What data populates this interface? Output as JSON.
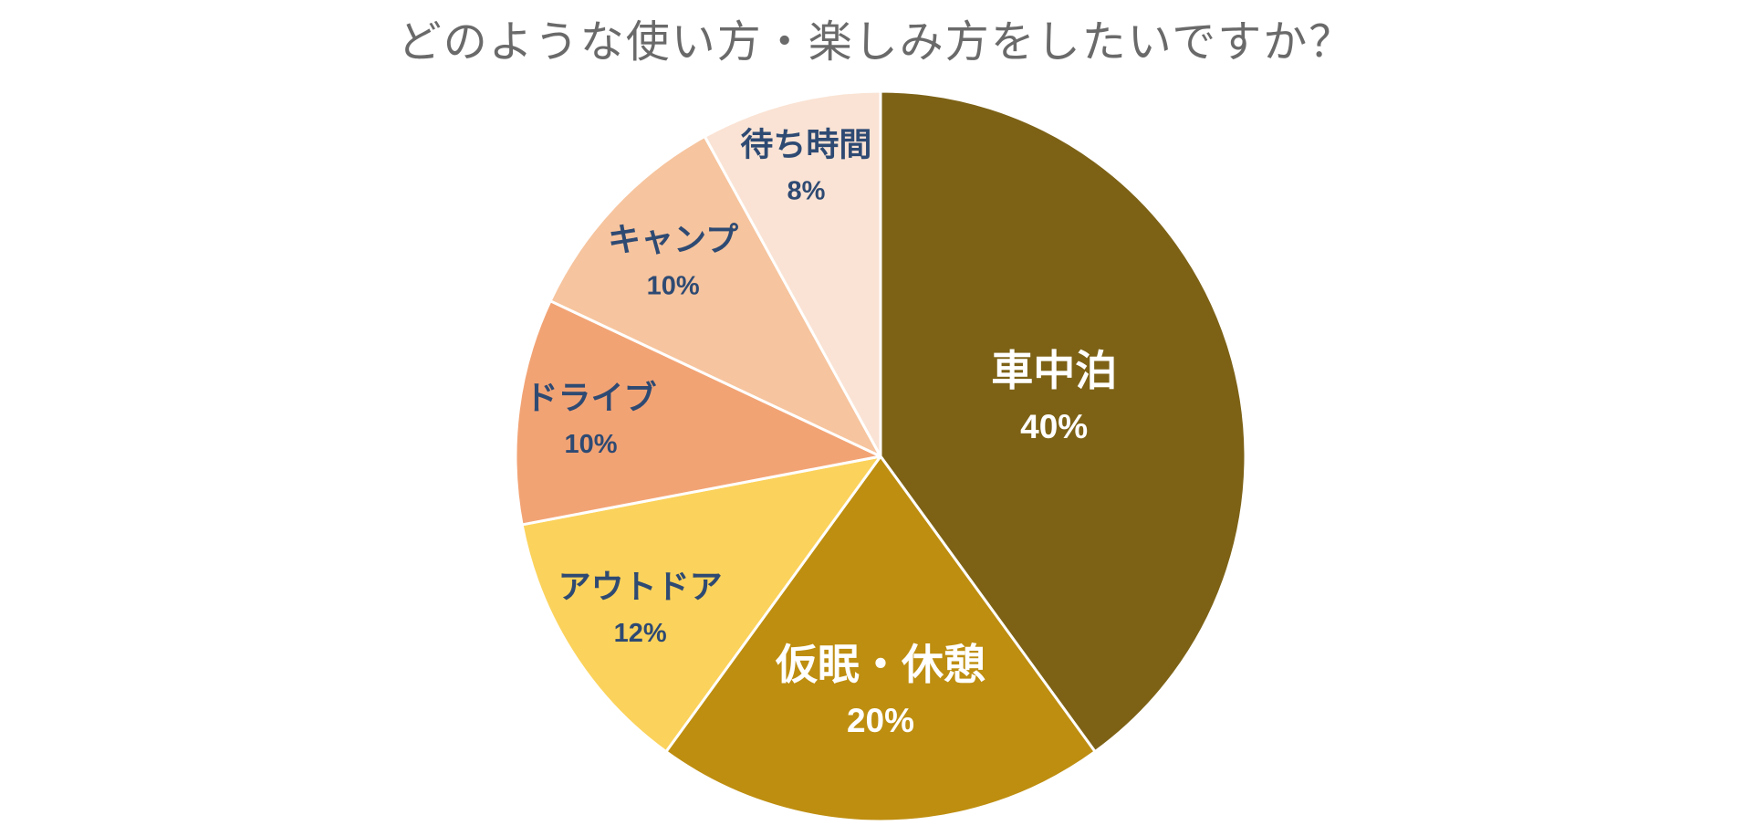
{
  "chart_data": {
    "type": "pie",
    "title": "どのような使い方・楽しみ方をしたいですか？",
    "title_color": "#6A6A6A",
    "legend": "none",
    "start_angle_deg": 0,
    "direction": "clockwise",
    "slice_border_color": "#FFFFFF",
    "label_colors": {
      "inside": "#FFFFFF",
      "outside": "#2E4A73"
    },
    "slices": [
      {
        "label": "車中泊",
        "value": 40,
        "pct_label": "40%",
        "color": "#7D6216",
        "label_style": "inside",
        "label_r": 0.5
      },
      {
        "label": "仮眠・休憩",
        "value": 20,
        "pct_label": "20%",
        "color": "#BE8E10",
        "label_style": "inside",
        "label_r": 0.65
      },
      {
        "label": "アウトドア",
        "value": 12,
        "pct_label": "12%",
        "color": "#FBD25B",
        "label_style": "outside",
        "label_r": 0.78
      },
      {
        "label": "ドライブ",
        "value": 10,
        "pct_label": "10%",
        "color": "#F2A374",
        "label_style": "outside",
        "label_r": 0.8
      },
      {
        "label": "キャンプ",
        "value": 10,
        "pct_label": "10%",
        "color": "#F6C49E",
        "label_style": "outside",
        "label_r": 0.78
      },
      {
        "label": "待ち時間",
        "value": 8,
        "pct_label": "8%",
        "color": "#FAE3D4",
        "label_style": "outside",
        "label_r": 0.82
      }
    ]
  }
}
